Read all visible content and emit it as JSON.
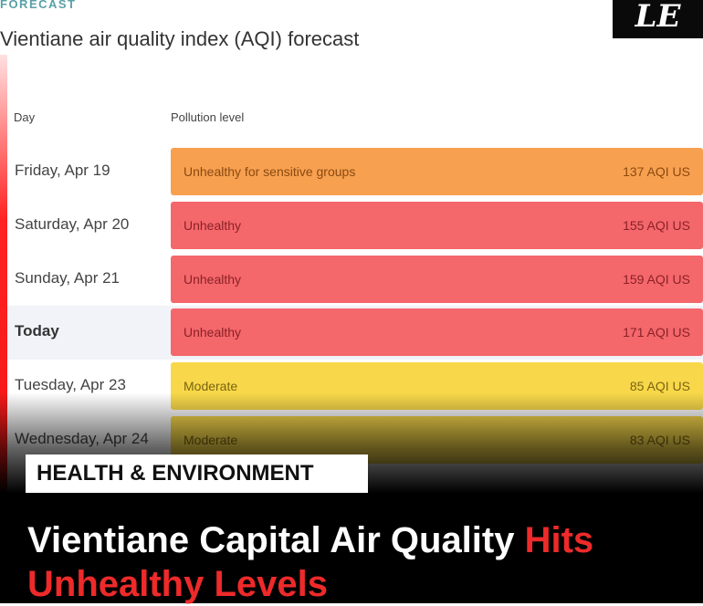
{
  "kicker": "FORECAST",
  "title": "Vientiane air quality index (AQI) forecast",
  "logo": "LE",
  "columns": {
    "day": "Day",
    "level": "Pollution level"
  },
  "rows": [
    {
      "day": "Friday, Apr 19",
      "level": "Unhealthy for sensitive groups",
      "aqi": "137 AQI US",
      "color": "#f7a050",
      "text": "#8a4a10"
    },
    {
      "day": "Saturday, Apr 20",
      "level": "Unhealthy",
      "aqi": "155 AQI US",
      "color": "#f4676b",
      "text": "#8a2226"
    },
    {
      "day": "Sunday, Apr 21",
      "level": "Unhealthy",
      "aqi": "159 AQI US",
      "color": "#f4676b",
      "text": "#8a2226"
    },
    {
      "day": "Today",
      "level": "Unhealthy",
      "aqi": "171 AQI US",
      "color": "#f4676b",
      "text": "#8a2226"
    },
    {
      "day": "Tuesday, Apr 23",
      "level": "Moderate",
      "aqi": "85 AQI US",
      "color": "#f8d84a",
      "text": "#7a6310"
    },
    {
      "day": "Wednesday, Apr 24",
      "level": "Moderate",
      "aqi": "83 AQI US",
      "color": "#f8d84a",
      "text": "#7a6310"
    }
  ],
  "category": "HEALTH & ENVIRONMENT",
  "headline": {
    "white": "Vientiane Capital Air Quality ",
    "red": "Hits Unhealthy Levels"
  }
}
